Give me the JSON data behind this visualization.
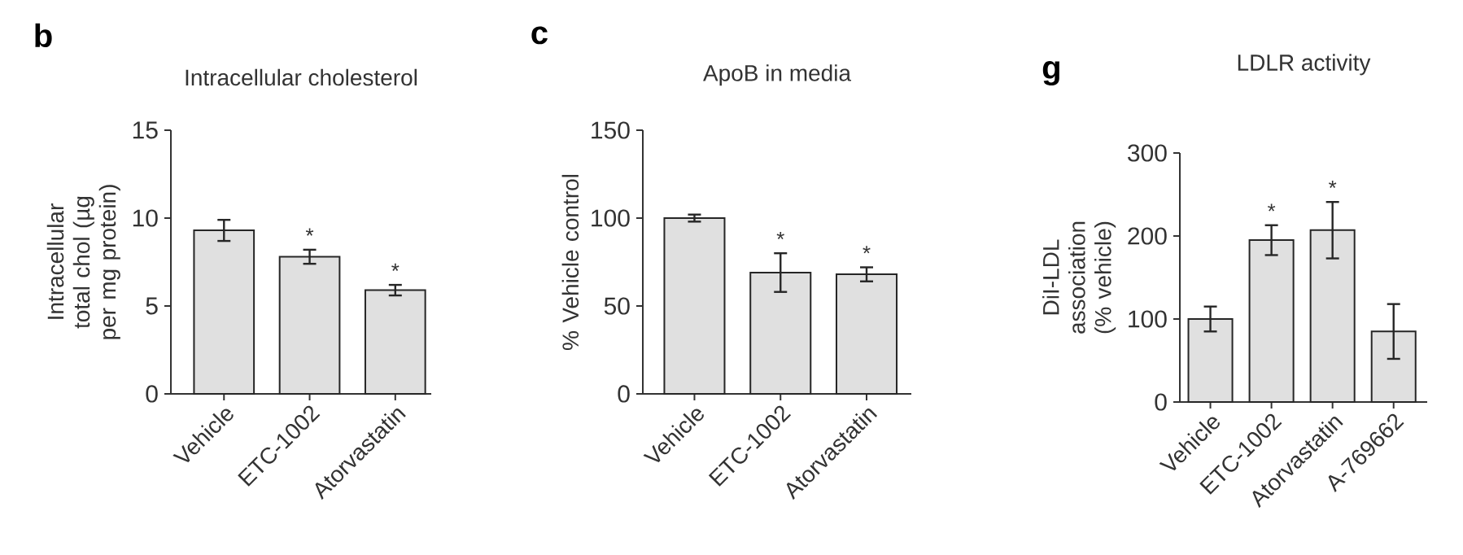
{
  "chart_data": [
    {
      "type": "bar",
      "title": "Intracellular cholesterol",
      "ylabel": "Intracellular total chol (µg per mg protein)",
      "categories": [
        "Vehicle",
        "ETC-1002",
        "Atorvastatin"
      ],
      "values": [
        9.3,
        7.8,
        5.9
      ],
      "errors": [
        0.6,
        0.4,
        0.3
      ],
      "color": "#e0e0e0",
      "ylim": [
        0,
        15
      ],
      "yticks": [
        0,
        5,
        10,
        15
      ],
      "annotations": [
        "b",
        {
          "text": "*",
          "x": "ETC-1002",
          "y": 7.8
        },
        {
          "text": "*",
          "x": "Atorvastatin",
          "y": 5.9
        }
      ]
    },
    {
      "type": "bar",
      "title": "ApoB in media",
      "ylabel": "% Vehicle control",
      "categories": [
        "Vehicle",
        "ETC-1002",
        "Atorvastatin"
      ],
      "values": [
        100,
        69,
        68
      ],
      "errors": [
        2,
        11,
        4
      ],
      "color": "#e0e0e0",
      "ylim": [
        0,
        150
      ],
      "yticks": [
        0,
        50,
        100,
        150
      ],
      "annotations": [
        "c",
        {
          "text": "*",
          "x": "ETC-1002",
          "y": 69
        },
        {
          "text": "*",
          "x": "Atorvastatin",
          "y": 68
        }
      ]
    },
    {
      "type": "bar",
      "title": "LDLR activity",
      "ylabel": "DiI-LDL association (% vehicle)",
      "categories": [
        "Vehicle",
        "ETC-1002",
        "Atorvastatin",
        "A-769662"
      ],
      "values": [
        100,
        195,
        207,
        85
      ],
      "errors": [
        15,
        18,
        34,
        33
      ],
      "color": "#e0e0e0",
      "ylim": [
        0,
        300
      ],
      "yticks": [
        0,
        100,
        200,
        300
      ],
      "annotations": [
        "g",
        {
          "text": "*",
          "x": "ETC-1002",
          "y": 195
        },
        {
          "text": "*",
          "x": "Atorvastatin",
          "y": 207
        }
      ]
    }
  ]
}
